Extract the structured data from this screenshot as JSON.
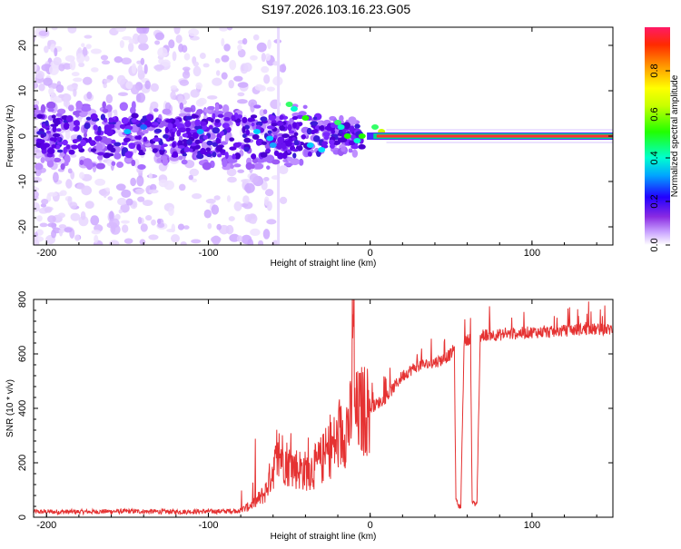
{
  "title": "S197.2026.103.16.23.G05",
  "chart_data": [
    {
      "type": "heatmap",
      "name": "spectrogram",
      "xlabel": "Height of straight line (km)",
      "ylabel": "Frequency (Hz)",
      "xlim": [
        -208,
        150
      ],
      "ylim": [
        -24,
        24
      ],
      "xticks": [
        -200,
        -100,
        0,
        100
      ],
      "yticks": [
        -20,
        -10,
        0,
        10,
        20
      ],
      "colorbar": {
        "label": "Normalized spectral amplitude",
        "range": [
          0.0,
          1.0
        ],
        "ticks": [
          0.0,
          0.2,
          0.4,
          0.6,
          0.8
        ]
      },
      "carrier_line": {
        "x_start": 0,
        "x_end": 150,
        "frequency": 0,
        "amplitude": 0.98
      }
    },
    {
      "type": "line",
      "name": "snr",
      "xlabel": "Height of straight line (km)",
      "ylabel": "SNR (10 * v/v)",
      "xlim": [
        -208,
        150
      ],
      "ylim": [
        0,
        800
      ],
      "xticks": [
        -200,
        -100,
        0,
        100
      ],
      "yticks": [
        0,
        200,
        400,
        600,
        800
      ],
      "color": "#e53232",
      "series": [
        {
          "name": "SNR",
          "x": [
            -208,
            -180,
            -150,
            -120,
            -90,
            -80,
            -75,
            -70,
            -65,
            -60,
            -55,
            -50,
            -45,
            -40,
            -35,
            -30,
            -25,
            -20,
            -15,
            -10,
            -5,
            0,
            5,
            10,
            15,
            20,
            25,
            30,
            35,
            40,
            45,
            50,
            52,
            53,
            55,
            56,
            58,
            60,
            62,
            63,
            65,
            66,
            68,
            70,
            80,
            90,
            100,
            110,
            120,
            130,
            140,
            150
          ],
          "y": [
            20,
            20,
            22,
            20,
            22,
            25,
            40,
            60,
            90,
            180,
            230,
            190,
            180,
            170,
            180,
            210,
            250,
            280,
            330,
            370,
            390,
            400,
            420,
            440,
            480,
            520,
            540,
            560,
            560,
            570,
            580,
            600,
            620,
            60,
            40,
            40,
            640,
            650,
            660,
            60,
            45,
            50,
            660,
            670,
            670,
            675,
            680,
            680,
            685,
            690,
            690,
            690
          ]
        }
      ]
    }
  ]
}
